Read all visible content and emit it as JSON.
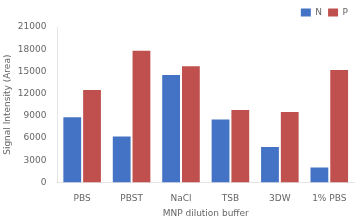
{
  "chart_data": {
    "type": "bar",
    "categories": [
      "PBS",
      "PBST",
      "NaCl",
      "TSB",
      "3DW",
      "1% PBS"
    ],
    "series": [
      {
        "name": "N",
        "color": "#4472C4",
        "values": [
          8800,
          6200,
          14500,
          8500,
          4800,
          2000
        ]
      },
      {
        "name": "P",
        "color": "#C0504D",
        "values": [
          12500,
          17800,
          15700,
          9800,
          9500,
          15200
        ]
      }
    ],
    "xlabel": "MNP dilution buffer",
    "ylabel": "Signal Intensity (Area)",
    "ylim": [
      0,
      21000
    ],
    "yticks": [
      0,
      3000,
      6000,
      9000,
      12000,
      15000,
      18000,
      21000
    ],
    "grid": false,
    "legend": "upper right"
  }
}
